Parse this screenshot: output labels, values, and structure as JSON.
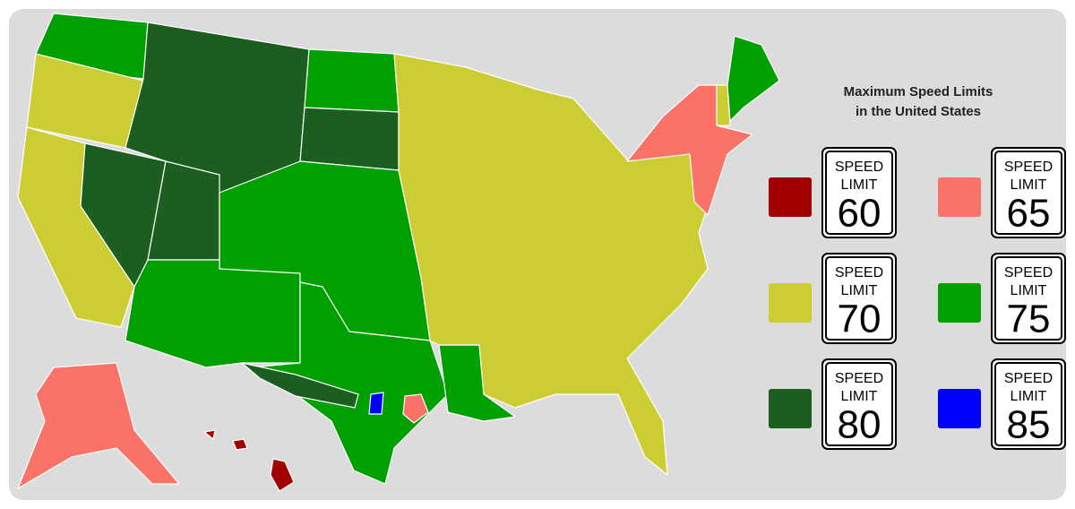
{
  "legend": {
    "title": [
      "Maximum Speed Limits",
      "in the United States"
    ],
    "sign_words": [
      "SPEED",
      "LIMIT"
    ],
    "items": [
      {
        "limit": "60",
        "color": "#a00000"
      },
      {
        "limit": "65",
        "color": "#fa7268"
      },
      {
        "limit": "70",
        "color": "#cccc33"
      },
      {
        "limit": "75",
        "color": "#00a000"
      },
      {
        "limit": "80",
        "color": "#1b5e20"
      },
      {
        "limit": "85",
        "color": "#0000ff"
      }
    ]
  }
}
